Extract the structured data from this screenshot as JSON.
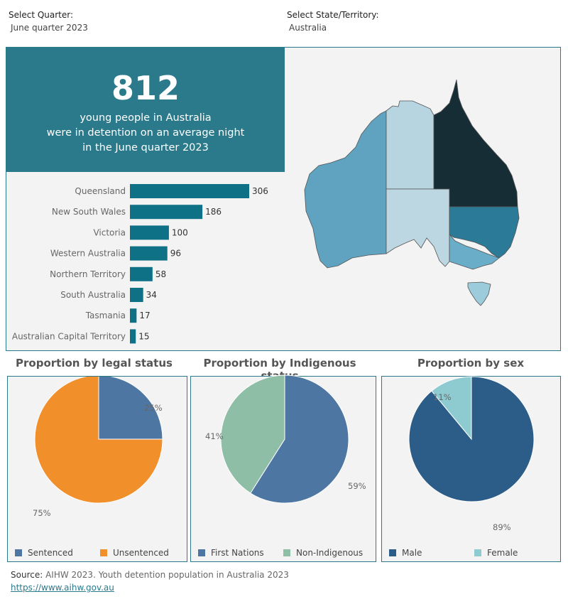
{
  "filters": {
    "quarter_label": "Select Quarter:",
    "quarter_value": "June quarter 2023",
    "state_label": "Select State/Territory:",
    "state_value": "Australia"
  },
  "kpi": {
    "number": "812",
    "line1": "young people in  Australia",
    "line2": "were in detention on an average night",
    "line3": "in the June quarter 2023"
  },
  "map": {
    "colors": {
      "Queensland": "#172d36",
      "New South Wales": "#2b7a98",
      "Victoria": "#6aadc8",
      "Western Australia": "#5fa3c1",
      "Northern Territory": "#b7d5e0",
      "South Australia": "#bcd7e2",
      "Tasmania": "#9ccbdb"
    }
  },
  "chart_data": [
    {
      "type": "bar",
      "orientation": "horizontal",
      "categories": [
        "Queensland",
        "New South Wales",
        "Victoria",
        "Western Australia",
        "Northern Territory",
        "South Australia",
        "Tasmania",
        "Australian Capital Territory"
      ],
      "values": [
        306,
        186,
        100,
        96,
        58,
        34,
        17,
        15
      ],
      "color": "#0f7185",
      "xlim": [
        0,
        306
      ]
    },
    {
      "type": "pie",
      "title": "Proportion by legal status",
      "labels": [
        "Sentenced",
        "Unsentenced"
      ],
      "values": [
        25,
        75
      ],
      "value_labels": [
        "25%",
        "75%"
      ],
      "colors": [
        "#4e76a3",
        "#f18f2b"
      ]
    },
    {
      "type": "pie",
      "title": "Proportion by Indigenous status",
      "labels": [
        "First Nations",
        "Non-Indigenous"
      ],
      "values": [
        59,
        41
      ],
      "value_labels": [
        "59%",
        "41%"
      ],
      "colors": [
        "#4e76a3",
        "#8fbea7"
      ]
    },
    {
      "type": "pie",
      "title": "Proportion by sex",
      "labels": [
        "Male",
        "Female"
      ],
      "values": [
        89,
        11
      ],
      "value_labels": [
        "89%",
        "11%"
      ],
      "colors": [
        "#2c5d88",
        "#8ecbd1"
      ]
    }
  ],
  "source": {
    "label": "Source:",
    "text": " AIHW 2023. Youth detention population in Australia 2023",
    "link": "https://www.aihw.gov.au"
  }
}
